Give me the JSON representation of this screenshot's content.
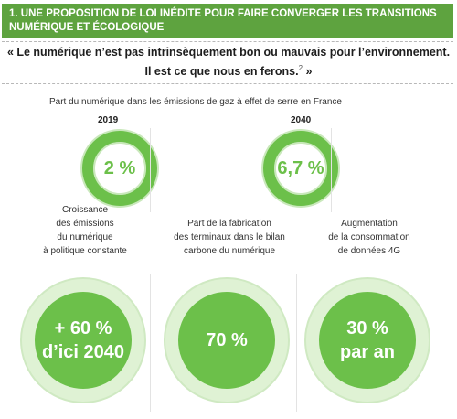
{
  "header": {
    "title_line1": "1. UNE PROPOSITION DE LOI INÉDITE POUR FAIRE CONVERGER LES TRANSITIONS",
    "title_line2": "NUMÉRIQUE ET ÉCOLOGIQUE"
  },
  "quote": {
    "line1": "« Le numérique n’est pas intrinsèquement bon ou mauvais pour l’environnement.",
    "line2": "Il est ce que nous en ferons.",
    "footnote": "2",
    "close": " »"
  },
  "emissions": {
    "caption": "Part du numérique dans les émissions de gaz à effet de serre en France",
    "years": [
      {
        "year": "2019",
        "value": "2 %"
      },
      {
        "year": "2040",
        "value": "6,7 %"
      }
    ]
  },
  "stats": [
    {
      "desc_lines": [
        "Croissance",
        "des émissions",
        "du numérique",
        "à politique constante"
      ],
      "value_lines": [
        "+ 60 %",
        "d’ici 2040"
      ]
    },
    {
      "desc_lines": [
        "Part de la fabrication",
        "des terminaux dans le bilan",
        "carbone du numérique"
      ],
      "value_lines": [
        "70 %"
      ]
    },
    {
      "desc_lines": [
        "Augmentation",
        "de la consommation",
        "de données 4G"
      ],
      "value_lines": [
        "30 %",
        "par an"
      ]
    }
  ],
  "colors": {
    "accent": "#6cc04a",
    "header_bg": "#5ea33f",
    "halo": "#dff2d4"
  }
}
